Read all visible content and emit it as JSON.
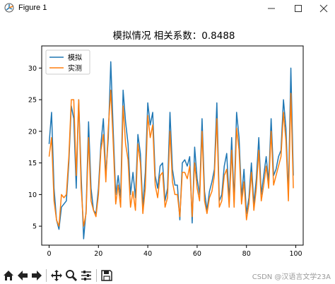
{
  "window": {
    "title": "Figure 1"
  },
  "chart_data": {
    "type": "line",
    "title": "模拟情况  相关系数：0.8488",
    "xlabel": "",
    "ylabel": "",
    "xlim": [
      -3,
      103
    ],
    "ylim": [
      2,
      33.5
    ],
    "xticks": [
      0,
      20,
      40,
      60,
      80,
      100
    ],
    "yticks": [
      5,
      10,
      15,
      20,
      25,
      30
    ],
    "legend_position": "top-left",
    "grid": false,
    "series": [
      {
        "name": "模拟",
        "color": "#1f77b4",
        "values": [
          18.0,
          23.0,
          11.0,
          6.0,
          4.5,
          8.0,
          8.5,
          9.0,
          15.0,
          24.0,
          22.0,
          11.0,
          25.0,
          13.0,
          3.0,
          7.5,
          21.5,
          11.0,
          7.5,
          7.0,
          11.0,
          18.0,
          22.0,
          13.0,
          19.0,
          31.0,
          20.0,
          10.0,
          13.0,
          9.5,
          26.5,
          21.5,
          18.0,
          10.0,
          13.5,
          9.5,
          19.5,
          16.5,
          8.0,
          13.5,
          24.5,
          21.0,
          23.0,
          13.0,
          11.0,
          14.5,
          15.0,
          9.0,
          11.0,
          23.0,
          14.0,
          11.5,
          11.5,
          6.0,
          15.0,
          15.5,
          14.5,
          16.0,
          5.5,
          17.5,
          12.5,
          10.0,
          22.0,
          10.5,
          7.5,
          10.5,
          12.0,
          14.0,
          24.5,
          9.0,
          10.0,
          14.5,
          16.5,
          9.0,
          19.0,
          9.0,
          23.0,
          19.0,
          9.5,
          14.0,
          7.0,
          9.5,
          15.0,
          8.5,
          12.5,
          19.0,
          10.0,
          13.0,
          16.0,
          12.0,
          22.0,
          13.0,
          14.0,
          16.0,
          17.0,
          25.0,
          20.5,
          10.0,
          30.0,
          13.0
        ]
      },
      {
        "name": "实测",
        "color": "#ff7f0e",
        "values": [
          16.0,
          19.0,
          9.0,
          6.0,
          5.0,
          10.0,
          9.5,
          10.0,
          16.0,
          25.0,
          25.0,
          13.0,
          25.0,
          11.0,
          5.0,
          7.0,
          19.0,
          9.0,
          7.5,
          6.5,
          10.0,
          17.0,
          19.5,
          12.0,
          20.5,
          26.5,
          18.0,
          8.5,
          11.5,
          8.0,
          24.0,
          18.0,
          15.5,
          8.0,
          10.5,
          7.5,
          18.0,
          15.0,
          7.0,
          11.0,
          22.5,
          19.0,
          21.0,
          11.5,
          9.5,
          13.0,
          13.5,
          8.0,
          9.5,
          20.0,
          12.0,
          10.0,
          10.0,
          6.5,
          13.5,
          13.5,
          12.5,
          14.5,
          6.5,
          15.0,
          11.0,
          9.0,
          20.0,
          9.0,
          7.0,
          9.5,
          10.5,
          13.0,
          22.0,
          8.0,
          9.0,
          13.0,
          14.0,
          8.0,
          17.0,
          8.0,
          20.5,
          17.0,
          8.5,
          12.0,
          6.0,
          8.5,
          13.5,
          7.5,
          11.0,
          17.0,
          9.0,
          11.5,
          14.5,
          11.0,
          20.0,
          11.5,
          13.0,
          14.5,
          16.0,
          23.0,
          18.5,
          9.0,
          26.0,
          11.0
        ]
      }
    ]
  },
  "toolbar": {
    "buttons": [
      "home-icon",
      "back-icon",
      "forward-icon",
      "pan-icon",
      "zoom-icon",
      "configure-subplots-icon",
      "save-icon"
    ]
  },
  "watermark": "CSDN @汉语言文学23A"
}
